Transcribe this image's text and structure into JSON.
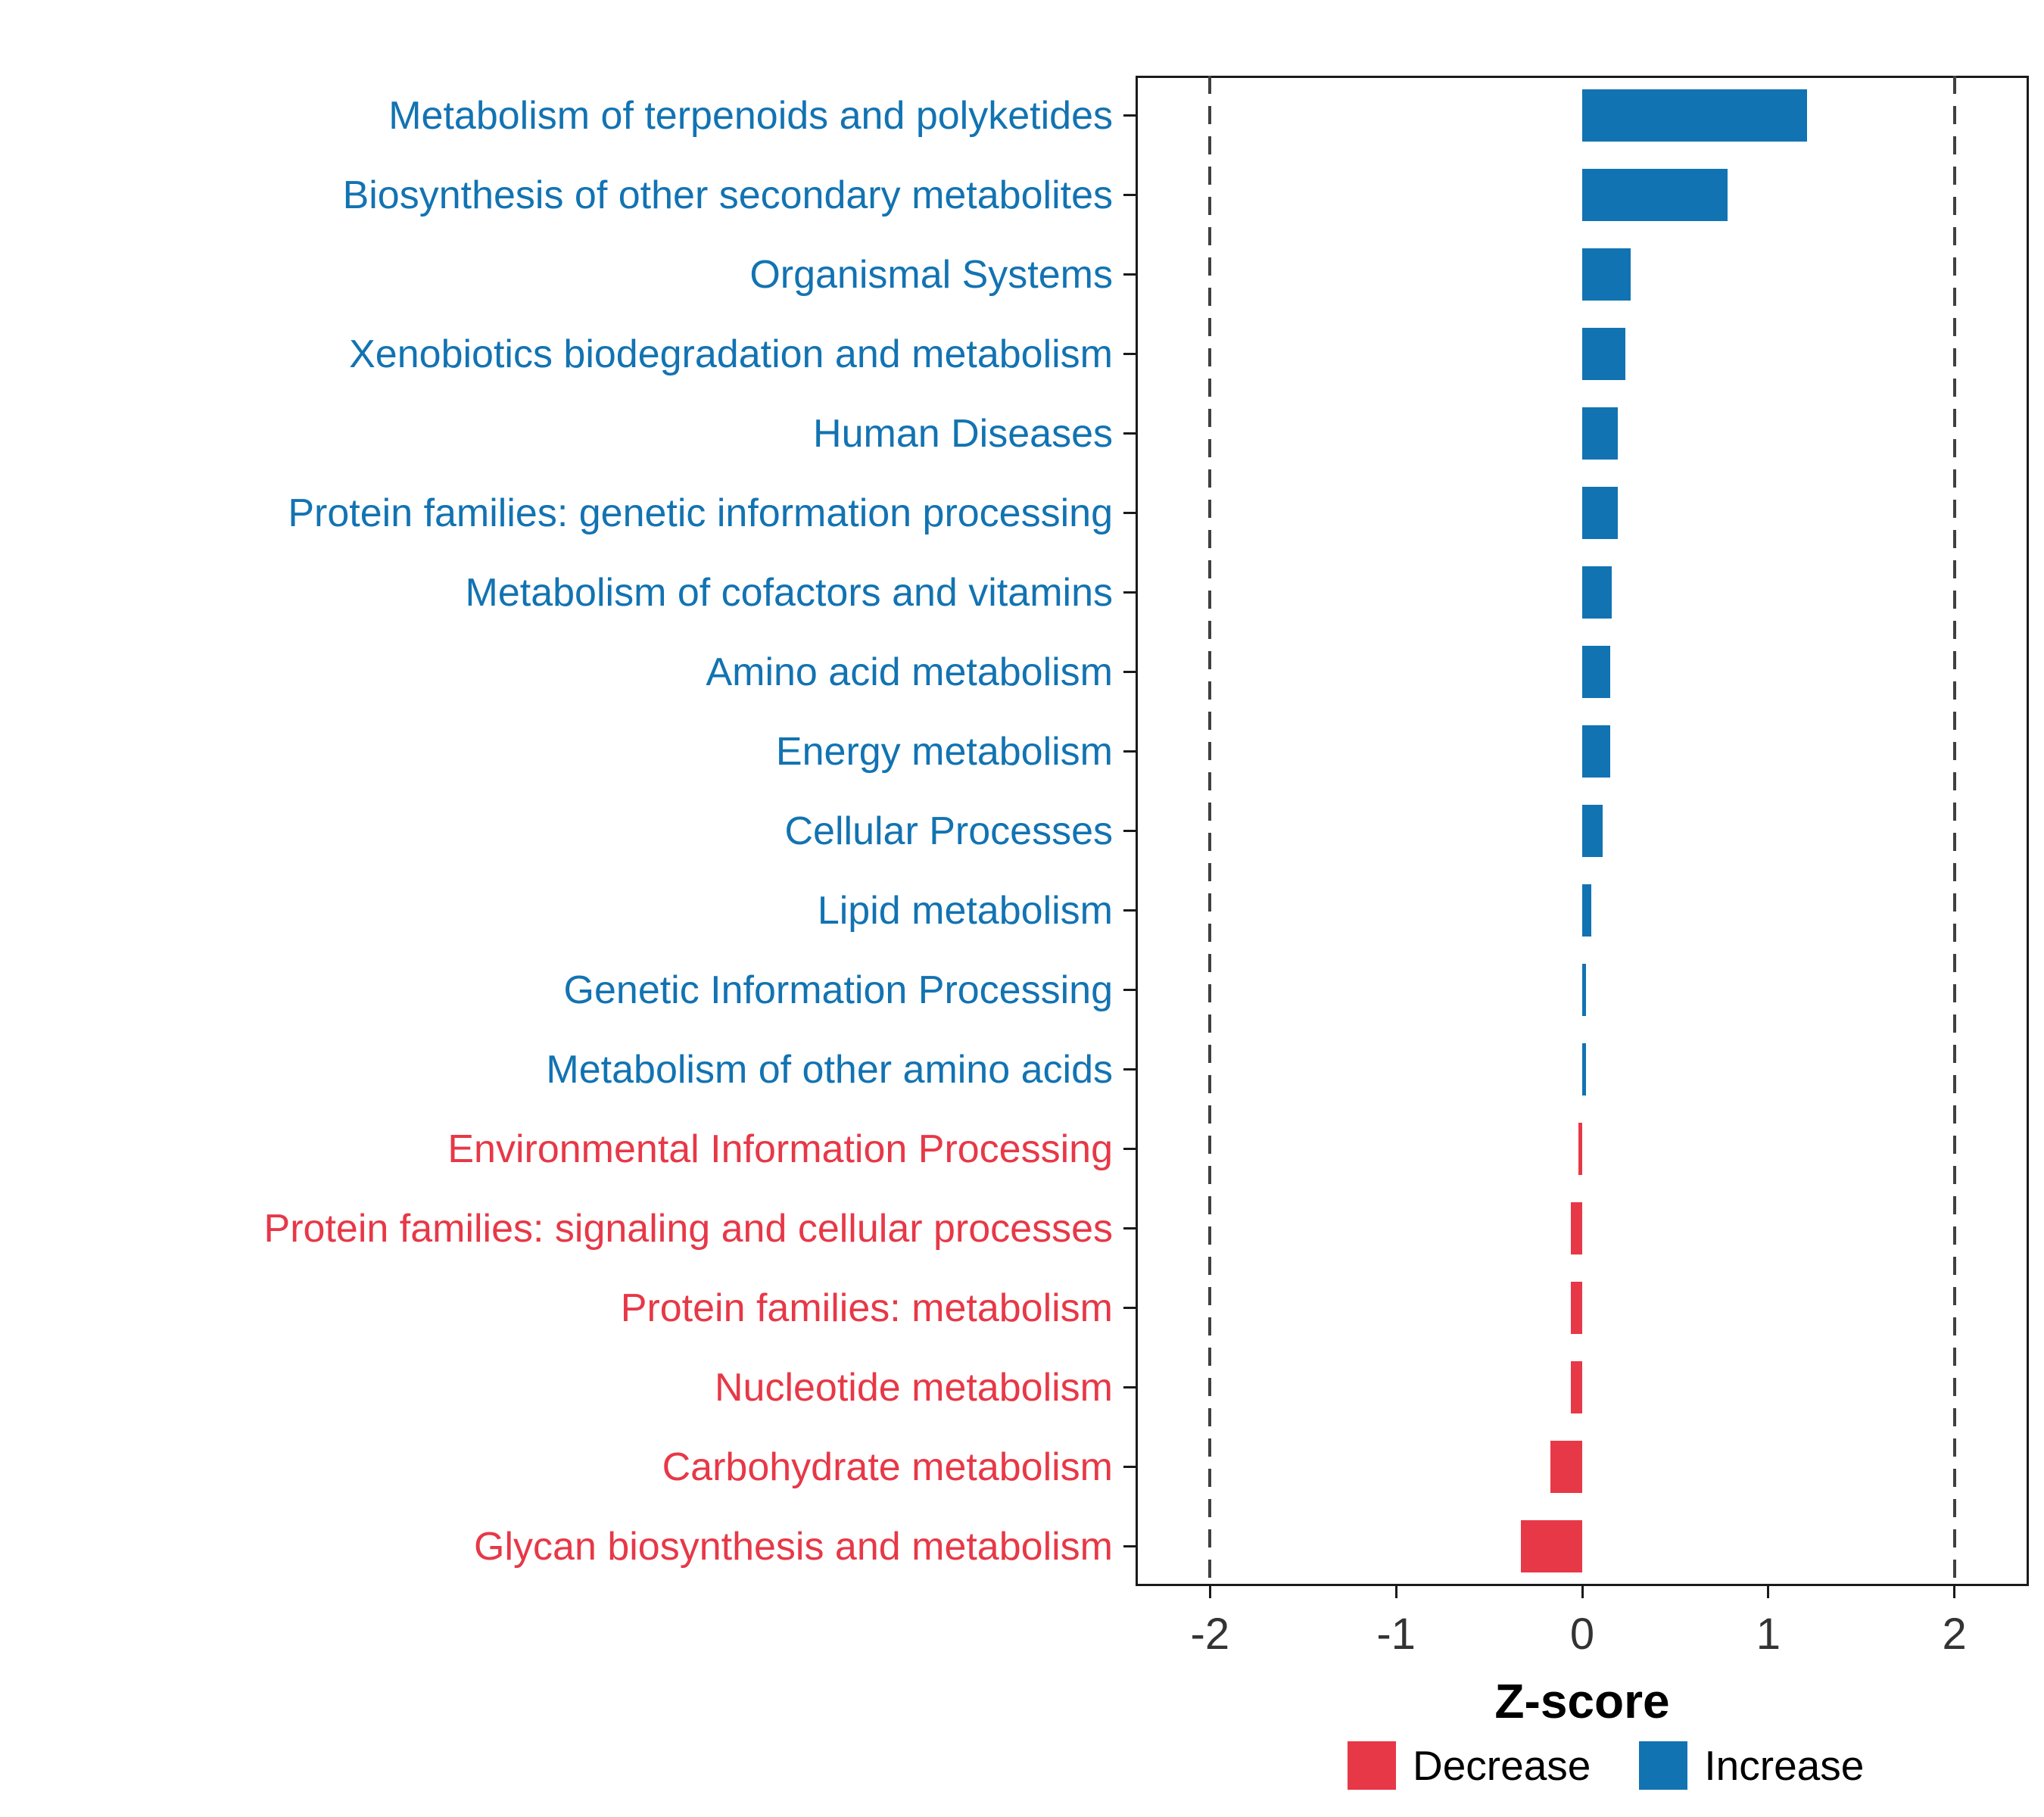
{
  "chart_data": {
    "type": "bar",
    "orientation": "horizontal",
    "title": "",
    "xlabel": "Z-score",
    "ylabel": "",
    "xlim": [
      -2.4,
      2.4
    ],
    "x_ticks": [
      -2,
      -1,
      0,
      1,
      2
    ],
    "reference_lines": [
      -2,
      2
    ],
    "grid": false,
    "legend_position": "bottom-right",
    "categories": [
      "Metabolism of terpenoids and polyketides",
      "Biosynthesis of other secondary metabolites",
      "Organismal Systems",
      "Xenobiotics biodegradation and metabolism",
      "Human Diseases",
      "Protein families: genetic information processing",
      "Metabolism of cofactors and vitamins",
      "Amino acid metabolism",
      "Energy metabolism",
      "Cellular Processes",
      "Lipid metabolism",
      "Genetic Information Processing",
      "Metabolism of other amino acids",
      "Environmental Information Processing",
      "Protein families: signaling and cellular processes",
      "Protein families: metabolism",
      "Nucleotide metabolism",
      "Carbohydrate metabolism",
      "Glycan biosynthesis and metabolism"
    ],
    "values": [
      1.21,
      0.78,
      0.26,
      0.23,
      0.19,
      0.19,
      0.16,
      0.15,
      0.15,
      0.11,
      0.05,
      0.02,
      0.02,
      -0.02,
      -0.06,
      -0.06,
      -0.06,
      -0.17,
      -0.33
    ],
    "groups": [
      "increase",
      "increase",
      "increase",
      "increase",
      "increase",
      "increase",
      "increase",
      "increase",
      "increase",
      "increase",
      "increase",
      "increase",
      "increase",
      "decrease",
      "decrease",
      "decrease",
      "decrease",
      "decrease",
      "decrease"
    ],
    "colors": {
      "increase": "#1273B2",
      "decrease": "#E73847"
    },
    "legend": [
      {
        "label": "Decrease",
        "key": "decrease"
      },
      {
        "label": "Increase",
        "key": "increase"
      }
    ]
  }
}
